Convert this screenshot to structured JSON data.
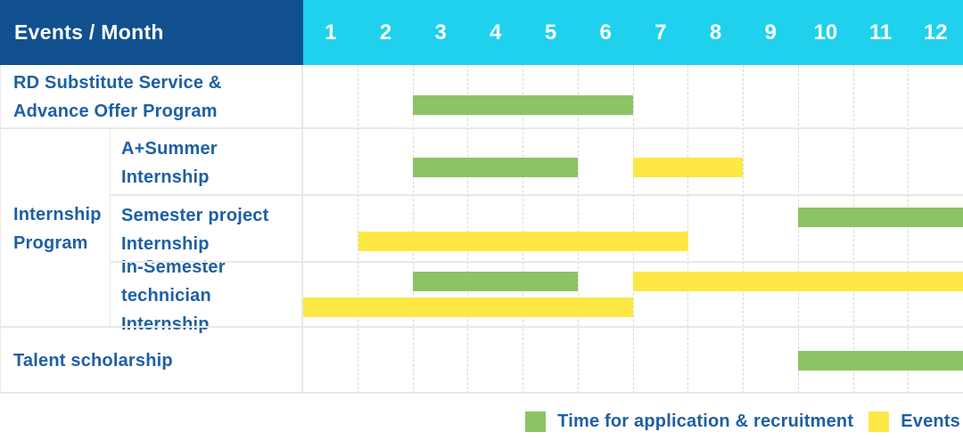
{
  "table": {
    "corner_title": "Events / Month",
    "months": [
      "1",
      "2",
      "3",
      "4",
      "5",
      "6",
      "7",
      "8",
      "9",
      "10",
      "11",
      "12"
    ],
    "row_labels": {
      "rd": {
        "line1": "RD Substitute Service &",
        "line2": "Advance Offer Program"
      },
      "group": {
        "line1": "Internship",
        "line2": "Program"
      },
      "a_summer": {
        "line1": "A+Summer",
        "line2": "Internship"
      },
      "semester_project": {
        "line1": "Semester project",
        "line2": "Internship"
      },
      "in_semester": {
        "line1": "In-Semester",
        "line2": "technician Internship"
      },
      "talent": {
        "line1": "Talent scholarship"
      }
    }
  },
  "legend": {
    "items": [
      {
        "key": "application_recruitment",
        "label": "Time for application & recruitment",
        "color": "#8cc464"
      },
      {
        "key": "events",
        "label": "Events",
        "color": "#fde845"
      }
    ]
  },
  "colors": {
    "header_navy": "#11508f",
    "header_cyan": "#1fd1ed",
    "bar_green": "#8cc464",
    "bar_yellow": "#fde845",
    "label_blue": "#1e5fa4",
    "grid_line": "#e8e8e8"
  },
  "chart_data": {
    "type": "gantt",
    "title": "Events / Month",
    "x_unit": "month",
    "x_range": [
      1,
      12
    ],
    "grid": true,
    "legend_position": "bottom-right",
    "legend_entries": [
      "Time for application & recruitment",
      "Events"
    ],
    "rows": [
      {
        "label": "RD Substitute Service & Advance Offer Program",
        "group": null,
        "bars": [
          {
            "series": "Time for application & recruitment",
            "color": "green",
            "start_month": 3,
            "end_month": 6
          }
        ]
      },
      {
        "label": "A+Summer Internship",
        "group": "Internship Program",
        "bars": [
          {
            "series": "Time for application & recruitment",
            "color": "green",
            "start_month": 3,
            "end_month": 5
          },
          {
            "series": "Events",
            "color": "yellow",
            "start_month": 7,
            "end_month": 8
          }
        ]
      },
      {
        "label": "Semester project Internship",
        "group": "Internship Program",
        "bars": [
          {
            "series": "Time for application & recruitment",
            "color": "green",
            "start_month": 10,
            "end_month": 12
          },
          {
            "series": "Events",
            "color": "yellow",
            "start_month": 2,
            "end_month": 7
          }
        ]
      },
      {
        "label": "In-Semester technician Internship",
        "group": "Internship Program",
        "bars": [
          {
            "series": "Time for application & recruitment",
            "color": "green",
            "start_month": 3,
            "end_month": 5
          },
          {
            "series": "Events",
            "color": "yellow",
            "start_month": 7,
            "end_month": 12
          },
          {
            "series": "Events",
            "color": "yellow",
            "start_month": 1,
            "end_month": 6
          }
        ]
      },
      {
        "label": "Talent scholarship",
        "group": null,
        "bars": [
          {
            "series": "Time for application & recruitment",
            "color": "green",
            "start_month": 10,
            "end_month": 12
          }
        ]
      }
    ]
  }
}
